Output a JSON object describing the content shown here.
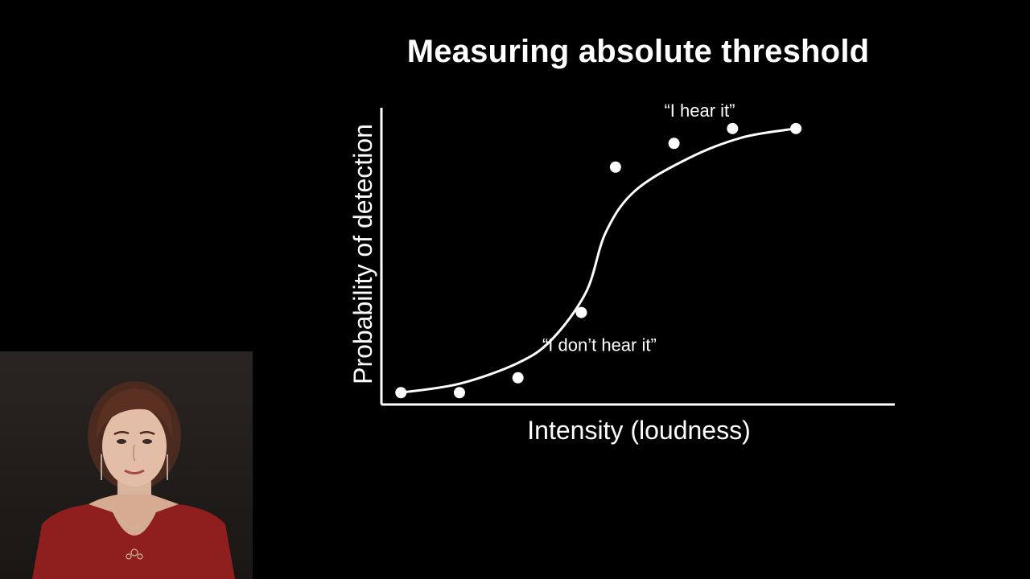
{
  "slide": {
    "title": "Measuring absolute threshold"
  },
  "chart_data": {
    "type": "scatter",
    "title": "Measuring absolute threshold",
    "xlabel": "Intensity (loudness)",
    "ylabel": "Probability of detection",
    "xlim": [
      0,
      10
    ],
    "ylim": [
      0,
      1
    ],
    "grid": false,
    "legend": "none",
    "series": [
      {
        "kind": "points",
        "x": [
          0.4,
          1.6,
          2.8,
          4.1,
          4.8,
          6.0,
          7.2,
          8.5
        ],
        "y": [
          0.04,
          0.04,
          0.09,
          0.31,
          0.8,
          0.88,
          0.93,
          0.93
        ]
      },
      {
        "kind": "fitted-curve",
        "x": [
          0.4,
          1.6,
          2.8,
          3.5,
          4.2,
          4.6,
          5.2,
          6.3,
          7.4,
          8.5
        ],
        "y": [
          0.04,
          0.07,
          0.14,
          0.22,
          0.38,
          0.58,
          0.72,
          0.83,
          0.9,
          0.93
        ]
      }
    ],
    "annotations": [
      {
        "text": "“I don’t hear it”",
        "x": 3.3,
        "y": 0.18
      },
      {
        "text": "“I hear it”",
        "x": 5.8,
        "y": 0.97
      }
    ],
    "colors": {
      "background": "#000000",
      "foreground": "#ffffff"
    }
  },
  "video": {
    "description_icon": "presenter-webcam"
  }
}
